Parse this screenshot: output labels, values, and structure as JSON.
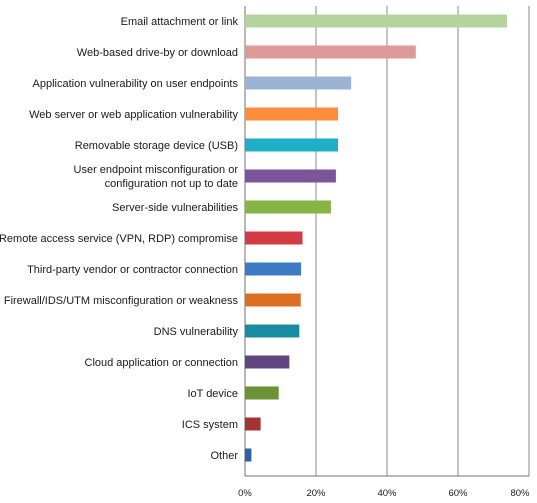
{
  "chart_data": {
    "type": "bar",
    "orientation": "horizontal",
    "title": "",
    "xlabel": "",
    "ylabel": "",
    "xlim": [
      0,
      80
    ],
    "x_ticks": [
      "0%",
      "20%",
      "40%",
      "60%",
      "80%"
    ],
    "grid": true,
    "categories": [
      "Email attachment or link",
      "Web-based drive-by or download",
      "Application vulnerability on user endpoints",
      "Web server or web application vulnerability",
      "Removable storage device (USB)",
      "User endpoint misconfiguration or configuration not up to date",
      "Server-side vulnerabilities",
      "Remote access service (VPN, RDP) compromise",
      "Third-party vendor or contractor connection",
      "Firewall/IDS/UTM misconfiguration or weakness",
      "DNS vulnerability",
      "Cloud application or connection",
      "IoT device",
      "ICS system",
      "Other"
    ],
    "category_lines": [
      [
        "Email attachment or link"
      ],
      [
        "Web-based drive-by or download"
      ],
      [
        "Application vulnerability on user endpoints"
      ],
      [
        "Web server or web application vulnerability"
      ],
      [
        "Removable storage device (USB)"
      ],
      [
        "User endpoint misconfiguration or",
        "configuration not up to date"
      ],
      [
        "Server-side vulnerabilities"
      ],
      [
        "Remote access service (VPN, RDP) compromise"
      ],
      [
        "Third-party vendor or contractor connection"
      ],
      [
        "Firewall/IDS/UTM misconfiguration or weakness"
      ],
      [
        "DNS vulnerability"
      ],
      [
        "Cloud application or connection"
      ],
      [
        "IoT device"
      ],
      [
        "ICS system"
      ],
      [
        "Other"
      ]
    ],
    "values": [
      73.8,
      48.1,
      29.9,
      26.2,
      26.2,
      25.6,
      24.2,
      16.2,
      15.8,
      15.7,
      15.3,
      12.5,
      9.5,
      4.4,
      1.8
    ],
    "colors": [
      "#b5d39c",
      "#de9a98",
      "#9db3d4",
      "#fc8d3d",
      "#1eaec6",
      "#7a559c",
      "#86b446",
      "#d33b44",
      "#3b7cc2",
      "#dc6f22",
      "#1a8ba1",
      "#61457f",
      "#6c9236",
      "#a33433",
      "#2d60a6"
    ]
  }
}
